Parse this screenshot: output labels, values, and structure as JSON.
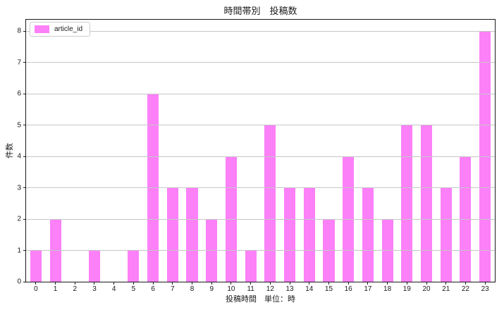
{
  "chart_data": {
    "type": "bar",
    "title": "時間帯別　投稿数",
    "xlabel": "投稿時間　単位：時",
    "ylabel": "件数",
    "categories": [
      "0",
      "1",
      "2",
      "3",
      "4",
      "5",
      "6",
      "7",
      "8",
      "9",
      "10",
      "11",
      "12",
      "13",
      "14",
      "15",
      "16",
      "17",
      "18",
      "19",
      "20",
      "21",
      "22",
      "23"
    ],
    "series": [
      {
        "name": "article_id",
        "values": [
          1,
          2,
          0,
          1,
          0,
          1,
          6,
          3,
          3,
          2,
          4,
          1,
          5,
          3,
          3,
          2,
          4,
          3,
          2,
          5,
          5,
          3,
          4,
          8
        ]
      }
    ],
    "yticks": [
      0,
      1,
      2,
      3,
      4,
      5,
      6,
      7,
      8
    ],
    "ylim": [
      0,
      8.37
    ],
    "grid": "horizontal",
    "grid_on_top_of_bars": true,
    "legend_position": "upper-left",
    "bar_width_fraction": 0.58,
    "colors": {
      "bar": "#FC80F8",
      "grid": "#C6C6C6",
      "spine": "#1A1A1A",
      "text": "#1A1A1A",
      "legend_border": "#CCCCCC",
      "background": "#FFFFFF"
    }
  }
}
